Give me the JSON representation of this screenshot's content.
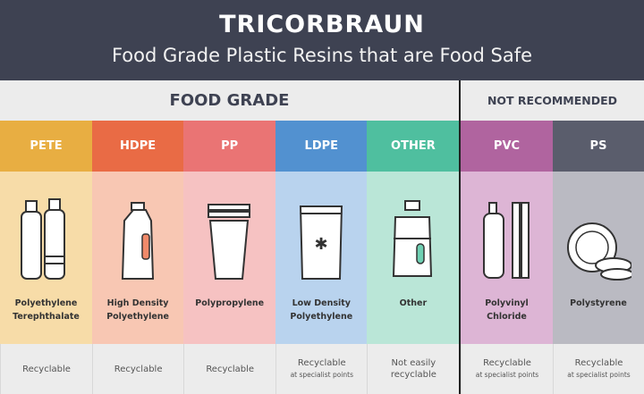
{
  "header": {
    "brand": "TRICORBRAUN",
    "title": "Food Grade Plastic Resins that are Food Safe"
  },
  "sections": {
    "food_grade": "FOOD GRADE",
    "not_recommended": "NOT RECOMMENDED"
  },
  "columns": [
    {
      "code": "PETE",
      "name1": "Polyethylene",
      "name2": "Terephthalate",
      "status": "Recyclable",
      "note": "",
      "icon": "bottles-icon",
      "color": "#e8ae42",
      "light": "#f7dca8"
    },
    {
      "code": "HDPE",
      "name1": "High Density",
      "name2": "Polyethylene",
      "status": "Recyclable",
      "note": "",
      "icon": "milk-jug-icon",
      "color": "#e96b45",
      "light": "#f8c7b3"
    },
    {
      "code": "PP",
      "name1": "Polypropylene",
      "name2": "",
      "status": "Recyclable",
      "note": "",
      "icon": "cups-icon",
      "color": "#ea7474",
      "light": "#f6c2c2"
    },
    {
      "code": "LDPE",
      "name1": "Low Density",
      "name2": "Polyethylene",
      "status": "Recyclable",
      "note": "at specialist points",
      "icon": "bag-icon",
      "color": "#5291d0",
      "light": "#b9d3ee"
    },
    {
      "code": "OTHER",
      "name1": "Other",
      "name2": "",
      "status": "Not easily",
      "note": "recyclable",
      "icon": "water-jug-icon",
      "color": "#4fbf9f",
      "light": "#bae6d7"
    },
    {
      "code": "PVC",
      "name1": "Polyvinyl",
      "name2": "Chloride",
      "status": "Recyclable",
      "note": "at specialist points",
      "icon": "pipes-icon",
      "color": "#b0649f",
      "light": "#ddb5d5"
    },
    {
      "code": "PS",
      "name1": "Polystyrene",
      "name2": "",
      "status": "Recyclable",
      "note": "at specialist points",
      "icon": "plates-icon",
      "color": "#5a5d6c",
      "light": "#babac2"
    }
  ]
}
